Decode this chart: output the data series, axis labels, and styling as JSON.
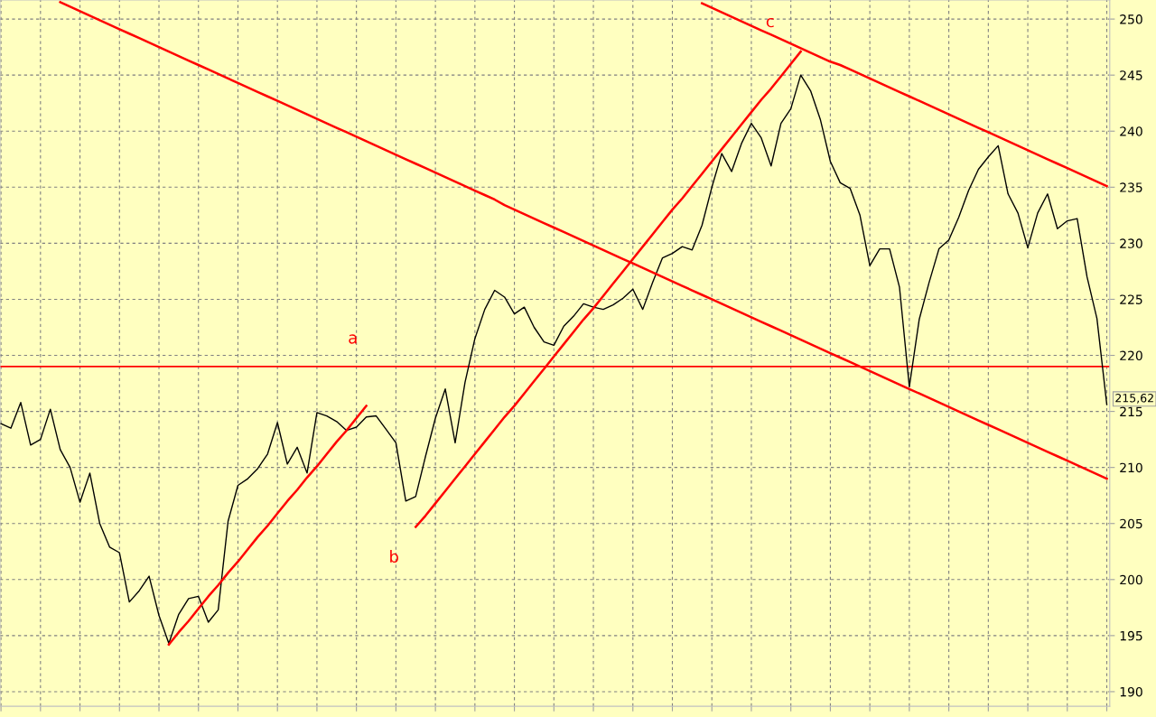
{
  "chart_data": {
    "type": "line",
    "categories": [
      null,
      null,
      null,
      null,
      null,
      null,
      null,
      null,
      null,
      null,
      null,
      null,
      null,
      null,
      null,
      null,
      null,
      null,
      null,
      null,
      null,
      null,
      null,
      null,
      null,
      null,
      null,
      null,
      null,
      null,
      null,
      null,
      null,
      null,
      null,
      null,
      null,
      null,
      null,
      null,
      null,
      null,
      null,
      null,
      null,
      null,
      null,
      null,
      null,
      null,
      null,
      null,
      null,
      null,
      null,
      null,
      null,
      null,
      null,
      null,
      null,
      null,
      null,
      null,
      null,
      null,
      null,
      null,
      null,
      null,
      null,
      null,
      null,
      null,
      null,
      null,
      null,
      null,
      null,
      null,
      null,
      null,
      null,
      null,
      null,
      null,
      null,
      null,
      null,
      null,
      null,
      null,
      null,
      null,
      null,
      null,
      null,
      null,
      null,
      null,
      null,
      null,
      null,
      null,
      null,
      null,
      null,
      null,
      null,
      null,
      null,
      null,
      null
    ],
    "ylim": [
      188.7,
      251.7
    ],
    "yticks": [
      190,
      195,
      200,
      205,
      210,
      215,
      220,
      225,
      230,
      235,
      240,
      245,
      250
    ],
    "tick_labels": "y",
    "grid": true,
    "marker": "none",
    "line_style": "solid",
    "series": [
      {
        "color": "#000000",
        "values": [
          213.9,
          213.5,
          215.8,
          212.0,
          212.5,
          215.2,
          211.6,
          210.0,
          206.9,
          209.5,
          205.0,
          202.9,
          202.4,
          198.0,
          199.0,
          200.3,
          196.8,
          194.3,
          196.9,
          198.3,
          198.5,
          196.2,
          197.3,
          205.2,
          208.4,
          209.0,
          209.9,
          211.2,
          214.0,
          210.3,
          211.8,
          209.5,
          214.9,
          214.6,
          214.1,
          213.3,
          213.6,
          214.5,
          214.6,
          213.4,
          212.2,
          207.0,
          207.4,
          211.0,
          214.4,
          217.0,
          212.2,
          217.6,
          221.5,
          224.1,
          225.8,
          225.2,
          223.7,
          224.3,
          222.5,
          221.2,
          220.9,
          222.6,
          223.5,
          224.6,
          224.3,
          224.1,
          224.5,
          225.1,
          225.9,
          224.1,
          226.5,
          228.7,
          229.1,
          229.7,
          229.4,
          231.6,
          235.0,
          238.0,
          236.4,
          238.9,
          240.7,
          239.4,
          236.9,
          240.7,
          242.0,
          245.0,
          243.6,
          241.0,
          237.3,
          235.4,
          234.9,
          232.5,
          228.0,
          229.5,
          229.5,
          226.1,
          217.2,
          223.2,
          226.5,
          229.5,
          230.3,
          232.3,
          234.7,
          236.6,
          237.7,
          238.7,
          234.4,
          232.7,
          229.6,
          232.7,
          234.4,
          231.3,
          232.0,
          232.2,
          227.0,
          223.3,
          215.62
        ]
      },
      {
        "color": "#ff0000",
        "values": [
          null,
          null,
          null,
          null,
          null,
          null,
          251.5,
          251.1,
          250.7,
          250.3,
          249.9,
          249.5,
          249.1,
          248.7,
          248.3,
          247.9,
          247.5,
          247.1,
          246.7,
          246.3,
          245.9,
          245.5,
          245.1,
          244.7,
          244.3,
          243.9,
          243.5,
          243.1,
          242.7,
          242.3,
          241.9,
          241.5,
          241.1,
          240.7,
          240.3,
          239.9,
          239.5,
          239.1,
          238.7,
          238.3,
          237.9,
          237.5,
          237.1,
          236.7,
          236.3,
          235.9,
          235.5,
          235.1,
          234.7,
          234.3,
          233.9,
          233.4,
          233.0,
          232.6,
          232.2,
          231.8,
          231.4,
          231.0,
          230.6,
          230.2,
          229.8,
          229.4,
          229.0,
          228.6,
          228.2,
          227.8,
          227.4,
          227.0,
          226.6,
          226.2,
          225.8,
          225.4,
          225.0,
          224.6,
          224.2,
          223.8,
          223.4,
          223.0,
          222.6,
          222.2,
          221.8,
          221.4,
          221.0,
          220.6,
          220.2,
          219.8,
          219.4,
          219.0,
          218.6,
          218.2,
          217.8,
          217.4,
          217.0,
          216.6,
          216.2,
          215.8,
          215.4,
          215.0,
          214.6,
          214.2,
          213.8,
          213.4,
          213.0,
          212.6,
          212.2,
          211.8,
          211.4,
          211.0,
          210.6,
          210.2,
          209.8,
          209.4,
          209.0
        ]
      },
      {
        "color": "#ff0000",
        "values": [
          null,
          null,
          null,
          null,
          null,
          null,
          null,
          null,
          null,
          null,
          null,
          null,
          null,
          null,
          null,
          null,
          null,
          null,
          null,
          null,
          null,
          null,
          null,
          null,
          null,
          null,
          null,
          null,
          null,
          null,
          null,
          null,
          null,
          null,
          null,
          null,
          null,
          null,
          null,
          null,
          null,
          null,
          null,
          null,
          null,
          null,
          null,
          null,
          null,
          null,
          null,
          null,
          null,
          null,
          null,
          null,
          null,
          null,
          null,
          null,
          null,
          null,
          null,
          null,
          null,
          null,
          null,
          null,
          null,
          null,
          null,
          251.4,
          251.0,
          250.6,
          250.2,
          249.8,
          249.4,
          249.0,
          248.6,
          248.2,
          247.8,
          247.4,
          247.0,
          246.6,
          246.2,
          245.9,
          245.5,
          245.1,
          244.7,
          244.3,
          243.9,
          243.5,
          243.1,
          242.7,
          242.3,
          241.9,
          241.5,
          241.1,
          240.7,
          240.3,
          239.9,
          239.5,
          239.1,
          238.7,
          238.3,
          237.9,
          237.5,
          237.1,
          236.7,
          236.3,
          235.9,
          235.5,
          235.1
        ]
      },
      {
        "color": "#ff0000",
        "values": [
          null,
          null,
          null,
          null,
          null,
          null,
          null,
          null,
          null,
          null,
          null,
          null,
          null,
          null,
          null,
          null,
          null,
          194.2,
          195.3,
          196.3,
          197.4,
          198.5,
          199.5,
          200.6,
          201.6,
          202.7,
          203.8,
          204.8,
          205.9,
          207.0,
          208.0,
          209.1,
          210.1,
          211.2,
          212.3,
          213.3,
          214.4,
          215.5,
          null,
          null,
          null,
          null,
          null,
          null,
          null,
          null,
          null,
          null,
          null,
          null,
          null,
          null,
          null,
          null,
          null,
          null,
          null,
          null,
          null,
          null,
          null,
          null,
          null,
          null,
          null,
          null,
          null,
          null,
          null,
          null,
          null,
          null,
          null,
          null,
          null,
          null,
          null,
          null,
          null,
          null,
          null,
          null,
          null,
          null,
          null,
          null,
          null,
          null,
          null,
          null,
          null,
          null,
          null,
          null,
          null,
          null,
          null,
          null,
          null,
          null,
          null,
          null,
          null,
          null,
          null,
          null,
          null,
          null,
          null,
          null,
          null,
          null,
          null
        ]
      },
      {
        "color": "#ff0000",
        "values": [
          null,
          null,
          null,
          null,
          null,
          null,
          null,
          null,
          null,
          null,
          null,
          null,
          null,
          null,
          null,
          null,
          null,
          null,
          null,
          null,
          null,
          null,
          null,
          null,
          null,
          null,
          null,
          null,
          null,
          null,
          null,
          null,
          null,
          null,
          null,
          null,
          null,
          null,
          null,
          null,
          null,
          null,
          204.7,
          205.7,
          206.8,
          207.9,
          209.0,
          210.1,
          211.2,
          212.3,
          213.4,
          214.5,
          215.5,
          216.6,
          217.7,
          218.8,
          219.9,
          221.0,
          222.1,
          223.2,
          224.2,
          225.3,
          226.4,
          227.5,
          228.6,
          229.7,
          230.8,
          231.9,
          233.0,
          234.0,
          235.1,
          236.2,
          237.3,
          238.4,
          239.5,
          240.6,
          241.7,
          242.8,
          243.8,
          244.9,
          246.0,
          247.1,
          null,
          null,
          null,
          null,
          null,
          null,
          null,
          null,
          null,
          null,
          null,
          null,
          null,
          null,
          null,
          null,
          null,
          null,
          null,
          null,
          null,
          null,
          null,
          null,
          null,
          null,
          null,
          null,
          null,
          null,
          null
        ]
      }
    ],
    "ref_lines": [
      {
        "axis": "y",
        "value": 219.0,
        "color": "#ff0000"
      }
    ],
    "annotations": [
      "a",
      "b",
      "c",
      "215,62"
    ]
  }
}
